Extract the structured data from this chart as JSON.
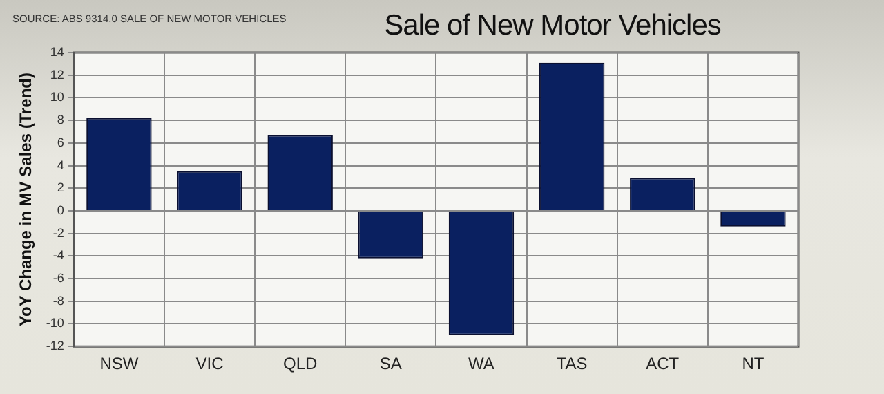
{
  "chart_data": {
    "type": "bar",
    "title": "Sale of New Motor Vehicles",
    "ylabel": "YoY Change in MV Sales (Trend)",
    "annotations": [
      "SOURCE: ABS 9314.0 SALE OF NEW MOTOR VEHICLES"
    ],
    "categories": [
      "NSW",
      "VIC",
      "QLD",
      "SA",
      "WA",
      "TAS",
      "ACT",
      "NT"
    ],
    "values": [
      8.2,
      3.5,
      6.7,
      -4.2,
      -11.0,
      13.1,
      2.9,
      -1.4
    ],
    "color": "#0a2060",
    "ylim": [
      -12,
      14
    ],
    "yticks": [
      -12,
      -10,
      -8,
      -6,
      -4,
      -2,
      0,
      2,
      4,
      6,
      8,
      10,
      12,
      14
    ],
    "grid": true,
    "legend": false
  }
}
